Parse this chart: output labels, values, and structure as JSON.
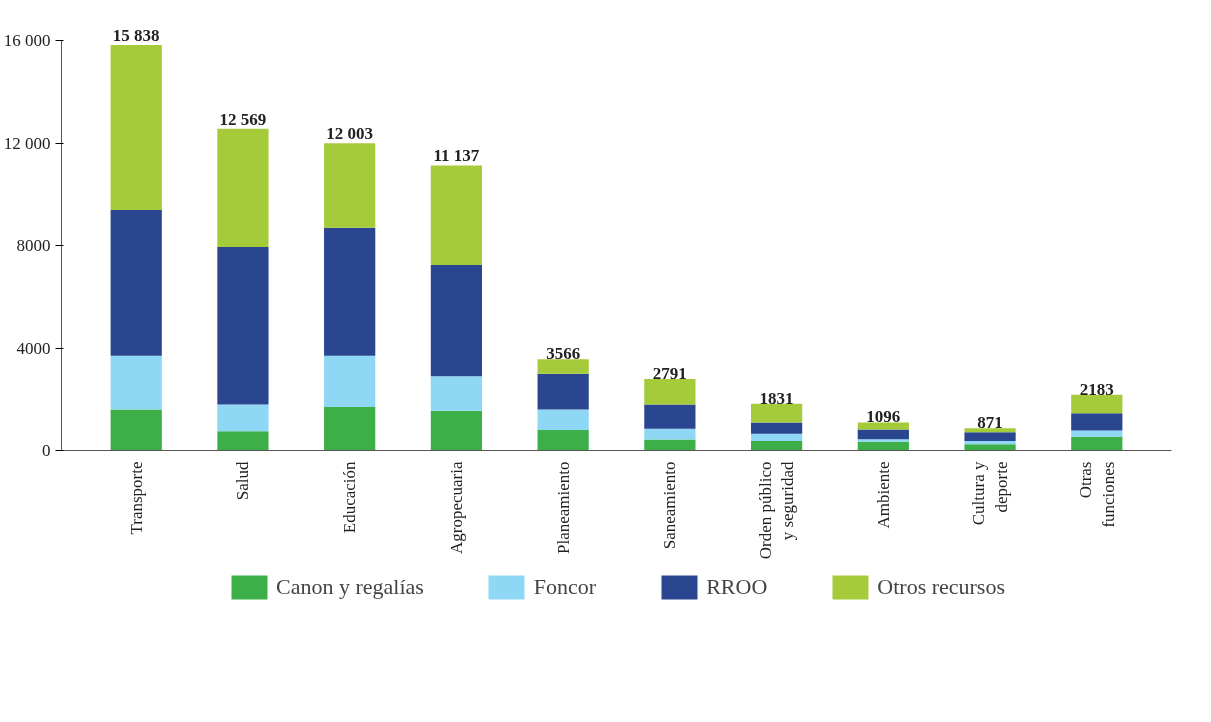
{
  "chart_data": {
    "type": "bar",
    "stacked": true,
    "categories": [
      "Transporte",
      "Salud",
      "Educación",
      "Agropecuaria",
      "Planeamiento",
      "Saneamiento",
      "Orden público\ny seguridad",
      "Ambiente",
      "Cultura y\ndeporte",
      "Otras\nfunciones"
    ],
    "series": [
      {
        "name": "Canon y regalías",
        "color": "#3daf49",
        "values": [
          1600,
          750,
          1700,
          1550,
          800,
          430,
          370,
          340,
          240,
          540
        ]
      },
      {
        "name": "Foncor",
        "color": "#8fd8f5",
        "values": [
          2100,
          1050,
          2000,
          1350,
          800,
          420,
          280,
          100,
          130,
          240
        ]
      },
      {
        "name": "RROO",
        "color": "#2a4690",
        "values": [
          5700,
          6150,
          5000,
          4350,
          1400,
          950,
          440,
          380,
          340,
          680
        ]
      },
      {
        "name": "Otros recursos",
        "color": "#a6cb3a",
        "values": [
          6438,
          4619,
          3303,
          3887,
          566,
          991,
          741,
          276,
          161,
          723
        ]
      }
    ],
    "totals": [
      "15 838",
      "12 569",
      "12 003",
      "11 137",
      "3566",
      "2791",
      "1831",
      "1096",
      "871",
      "2183"
    ],
    "ylim": [
      0,
      16000
    ],
    "yticks": [
      0,
      4000,
      8000,
      {
        "value": 12000,
        "label": "12 000"
      },
      {
        "value": 16000,
        "label": "16 000"
      }
    ],
    "grid": false,
    "legend": "bottom"
  }
}
